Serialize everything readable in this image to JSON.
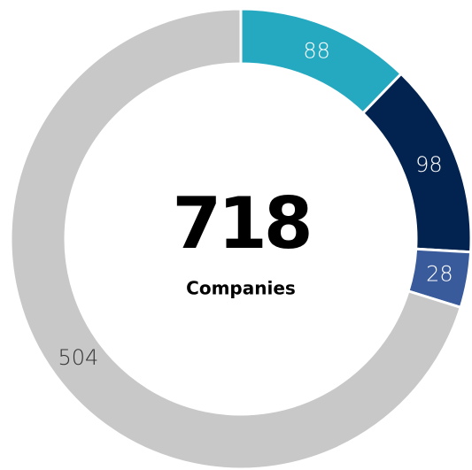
{
  "chart_data": {
    "type": "donut",
    "categories": [
      null,
      null,
      null,
      null
    ],
    "values": [
      88,
      98,
      28,
      504
    ],
    "colors": [
      "#25a9c1",
      "#02224f",
      "#3a5b9b",
      "#c8c8c8"
    ],
    "label_colors": [
      "#ffffff",
      "#ffffff",
      "#ffffff",
      "#333333"
    ],
    "center_value": 718,
    "center_label": "Companies"
  }
}
